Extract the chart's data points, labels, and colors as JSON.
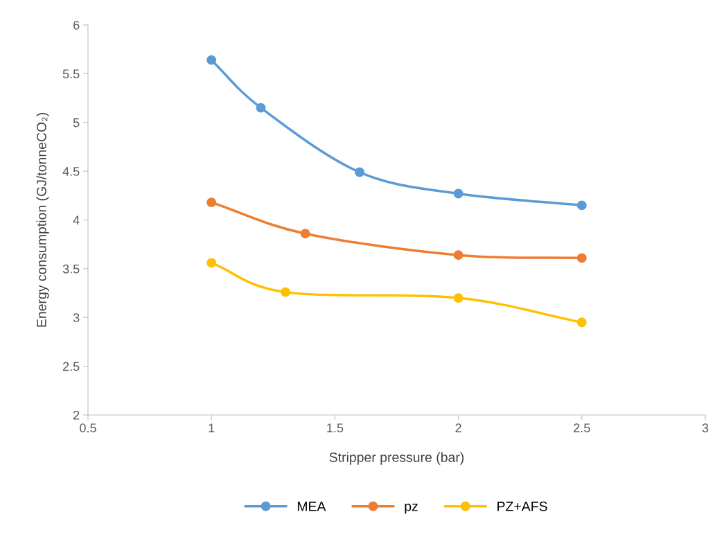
{
  "chart_data": {
    "type": "line",
    "xlabel": "Stripper pressure (bar)",
    "ylabel": "Energy consumption (GJ/tonneCO₂)",
    "xlim": [
      0.5,
      3
    ],
    "xticks": [
      0.5,
      1,
      1.5,
      2,
      2.5,
      3
    ],
    "ylim": [
      2,
      6
    ],
    "yticks": [
      2,
      2.5,
      3,
      3.5,
      4,
      4.5,
      5,
      5.5,
      6
    ],
    "grid": false,
    "legend": "bottom",
    "marker": "circle",
    "line_style": "solid",
    "series": [
      {
        "name": "MEA",
        "color": "#5b9bd5",
        "x": [
          1,
          1.2,
          1.6,
          2,
          2.5
        ],
        "values": [
          5.64,
          5.15,
          4.49,
          4.27,
          4.15
        ]
      },
      {
        "name": "pz",
        "color": "#ed7d31",
        "x": [
          1,
          1.38,
          2,
          2.5
        ],
        "values": [
          4.18,
          3.86,
          3.64,
          3.61
        ]
      },
      {
        "name": "PZ+AFS",
        "color": "#ffc000",
        "x": [
          1,
          1.3,
          2,
          2.5
        ],
        "values": [
          3.56,
          3.26,
          3.2,
          2.95
        ]
      }
    ]
  }
}
